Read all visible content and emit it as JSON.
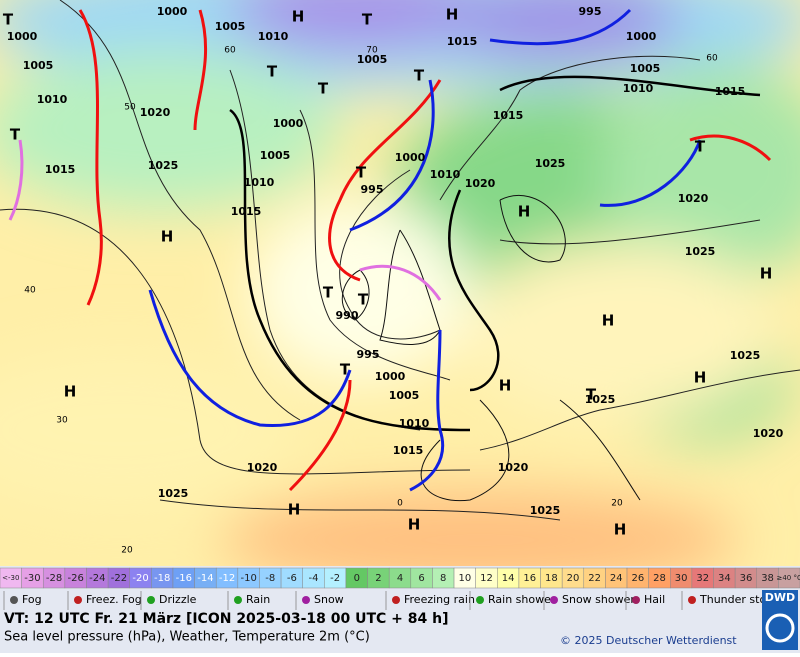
{
  "map": {
    "isobar_labels": [
      "1000",
      "1005",
      "1010",
      "1000",
      "1005",
      "1010",
      "1020",
      "1015",
      "1025",
      "1000",
      "1005",
      "1010",
      "1015",
      "1005",
      "1015",
      "995",
      "1000",
      "1005",
      "1010",
      "1015",
      "1015",
      "1000",
      "1010",
      "1020",
      "995",
      "1025",
      "1020",
      "1025",
      "990",
      "995",
      "1000",
      "1005",
      "1010",
      "1015",
      "1020",
      "1025",
      "1020",
      "1025",
      "1025",
      "1025",
      "1020"
    ],
    "latitude_labels": [
      "60",
      "50",
      "70",
      "40",
      "30",
      "20",
      "60",
      "0",
      "20"
    ],
    "pressure_centers": [
      "T",
      "H",
      "T",
      "H",
      "T",
      "T",
      "T",
      "T",
      "H",
      "T",
      "H",
      "T",
      "T",
      "H",
      "H",
      "T",
      "H",
      "H",
      "T",
      "H",
      "H",
      "H",
      "H",
      "T"
    ],
    "temperature_scale": [
      {
        "label": "<-30",
        "color": "#f0b8f0"
      },
      {
        "label": "-30",
        "color": "#e6a0e6"
      },
      {
        "label": "-28",
        "color": "#d690e0"
      },
      {
        "label": "-26",
        "color": "#c882dc"
      },
      {
        "label": "-24",
        "color": "#b478dc"
      },
      {
        "label": "-22",
        "color": "#a070dc"
      },
      {
        "label": "-20",
        "color": "#8c82f0"
      },
      {
        "label": "-18",
        "color": "#7896f0"
      },
      {
        "label": "-16",
        "color": "#6ea0f5"
      },
      {
        "label": "-14",
        "color": "#78aff5"
      },
      {
        "label": "-12",
        "color": "#82beff"
      },
      {
        "label": "-10",
        "color": "#8cc8ff"
      },
      {
        "label": "-8",
        "color": "#96d2ff"
      },
      {
        "label": "-6",
        "color": "#a0dcff"
      },
      {
        "label": "-4",
        "color": "#aae6ff"
      },
      {
        "label": "-2",
        "color": "#b4f0ff"
      },
      {
        "label": "0",
        "color": "#64c864"
      },
      {
        "label": "2",
        "color": "#78d278"
      },
      {
        "label": "4",
        "color": "#8cdc8c"
      },
      {
        "label": "6",
        "color": "#a0e6a0"
      },
      {
        "label": "8",
        "color": "#b4f0b4"
      },
      {
        "label": "10",
        "color": "#ffffe6"
      },
      {
        "label": "12",
        "color": "#ffffc8"
      },
      {
        "label": "14",
        "color": "#ffffaa"
      },
      {
        "label": "16",
        "color": "#fff096"
      },
      {
        "label": "18",
        "color": "#ffe68c"
      },
      {
        "label": "20",
        "color": "#ffdc8c"
      },
      {
        "label": "22",
        "color": "#ffd282"
      },
      {
        "label": "24",
        "color": "#ffc378"
      },
      {
        "label": "26",
        "color": "#ffb46e"
      },
      {
        "label": "28",
        "color": "#ffa064"
      },
      {
        "label": "30",
        "color": "#f08c6e"
      },
      {
        "label": "32",
        "color": "#e67878"
      },
      {
        "label": "34",
        "color": "#dc8282"
      },
      {
        "label": "36",
        "color": "#d28c8c"
      },
      {
        "label": "38",
        "color": "#c89696"
      },
      {
        "label": "≥40 °C",
        "color": "#c8a0a0"
      }
    ],
    "weather_legend": [
      "Fog",
      "Freez. Fog",
      "Drizzle",
      "Rain",
      "Snow",
      "Freezing rain",
      "Rain shower",
      "Snow shower",
      "Hail",
      "Thunder storm"
    ],
    "footer": {
      "valid_time": "VT: 12 UTC Fr.  21 März [ICON 2025-03-18  00 UTC + 84 h]",
      "description": "Sea level pressure (hPa), Weather, Temperature 2m (°C)",
      "credit": "© 2025 Deutscher Wetterdienst",
      "logo": "DWD"
    }
  }
}
